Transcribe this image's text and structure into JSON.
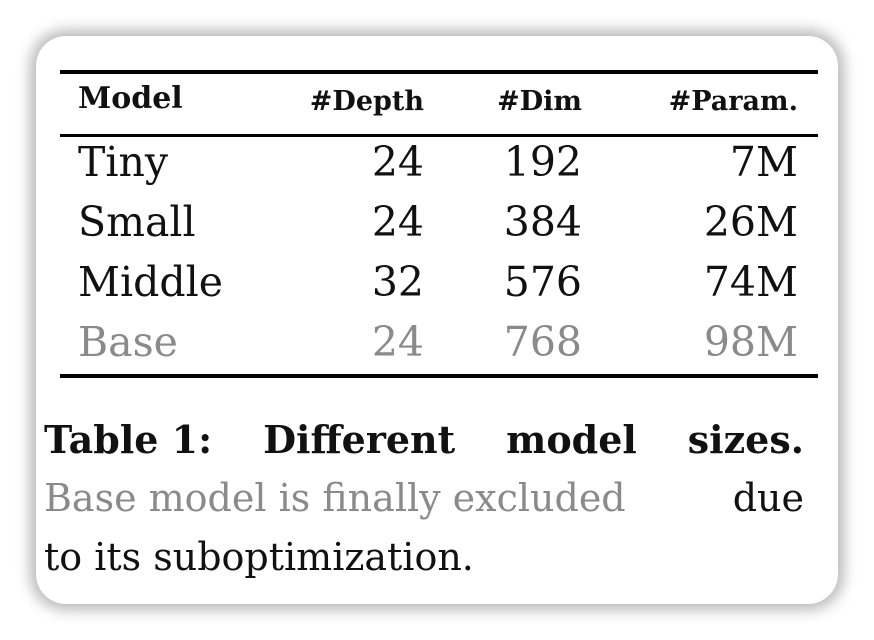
{
  "table": {
    "headers": {
      "model": "Model",
      "depth": "#Depth",
      "dim": "#Dim",
      "param": "#Param."
    },
    "rows": [
      {
        "model": "Tiny",
        "depth": "24",
        "dim": "192",
        "param": "7M",
        "muted": false
      },
      {
        "model": "Small",
        "depth": "24",
        "dim": "384",
        "param": "26M",
        "muted": false
      },
      {
        "model": "Middle",
        "depth": "32",
        "dim": "576",
        "param": "74M",
        "muted": false
      },
      {
        "model": "Base",
        "depth": "24",
        "dim": "768",
        "param": "98M",
        "muted": true
      }
    ]
  },
  "caption": {
    "label": "Table 1:",
    "title_words": [
      "Different",
      "model",
      "sizes."
    ],
    "muted_text": "Base model is finally excluded",
    "line2_end": "due",
    "line3": "to its suboptimization."
  },
  "colors": {
    "text": "#111111",
    "muted": "#8a8a8a",
    "rule": "#000000"
  }
}
